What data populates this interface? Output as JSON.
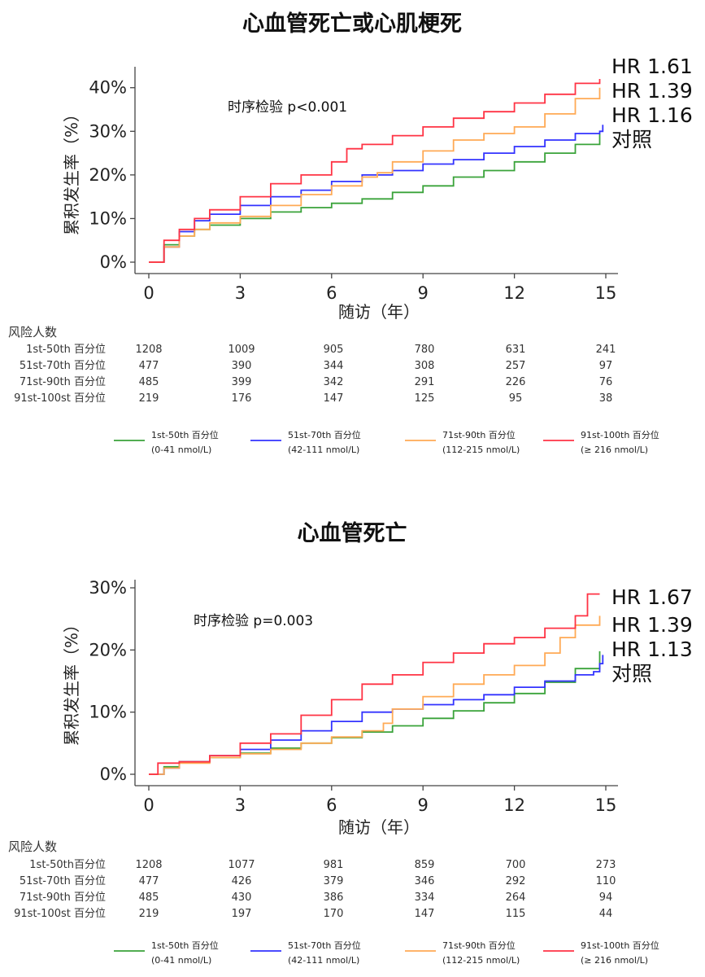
{
  "chart_data": [
    {
      "type": "line",
      "title": "心血管死亡或心肌梗死",
      "ylabel": "累积发生率（%）",
      "xlabel": "随访（年）",
      "xlim": [
        0,
        15
      ],
      "ylim": [
        0,
        42
      ],
      "x_ticks": [
        "0",
        "3",
        "6",
        "9",
        "12",
        "15"
      ],
      "y_ticks": [
        "0%",
        "10%",
        "20%",
        "30%",
        "40%"
      ],
      "test_label": "时序检验 p<0.001",
      "end_labels": [
        "HR 1.61",
        "HR 1.39",
        "HR 1.16",
        "对照"
      ],
      "series": [
        {
          "name": "1st-50th 百分位 (0-41 nmol/L)",
          "color": "#3aa33a",
          "x": [
            0,
            0.5,
            1,
            1.5,
            2,
            3,
            4,
            5,
            6,
            7,
            8,
            9,
            10,
            11,
            12,
            13,
            14,
            14.8
          ],
          "y": [
            0,
            4,
            6,
            7.5,
            8.5,
            10,
            11.5,
            12.5,
            13.5,
            14.5,
            16,
            17.5,
            19.5,
            21,
            23,
            25,
            27,
            29.5
          ]
        },
        {
          "name": "51st-70th 百分位 (42-111 nmol/L)",
          "color": "#3333ff",
          "x": [
            0,
            0.5,
            1,
            1.5,
            2,
            3,
            4,
            5,
            6,
            7,
            8,
            9,
            10,
            11,
            12,
            13,
            14,
            14.8,
            14.9
          ],
          "y": [
            0,
            3.5,
            7,
            9.5,
            11,
            13,
            15,
            16.5,
            18.5,
            20,
            21,
            22.5,
            23.5,
            25,
            26.5,
            28,
            29.5,
            30,
            31.5
          ]
        },
        {
          "name": "71st-90th 百分位 (112-215 nmol/L)",
          "color": "#ffaa55",
          "x": [
            0,
            0.5,
            1,
            1.5,
            2,
            3,
            4,
            5,
            6,
            7,
            7.5,
            8,
            9,
            10,
            11,
            12,
            13,
            14,
            14.8
          ],
          "y": [
            0,
            3.5,
            6,
            7.5,
            9,
            10.5,
            13,
            15.5,
            17.5,
            19.5,
            20.5,
            23,
            25.5,
            28,
            29.5,
            31,
            34,
            37.5,
            40
          ]
        },
        {
          "name": "91st-100th 百分位 (≥ 216 nmol/L)",
          "color": "#ff3344",
          "x": [
            0,
            0.5,
            1,
            1.5,
            2,
            3,
            4,
            5,
            6,
            6.5,
            7,
            8,
            9,
            10,
            11,
            12,
            13,
            14,
            14.8
          ],
          "y": [
            0,
            5,
            7.5,
            10,
            12,
            15,
            18,
            20,
            23,
            26,
            27,
            29,
            31,
            33,
            34.5,
            36.5,
            38.5,
            41,
            42
          ]
        }
      ],
      "risk_table": {
        "title": "风险人数",
        "rows": [
          {
            "label": "1st-50th 百分位",
            "values": [
              "1208",
              "1009",
              "905",
              "780",
              "631",
              "241"
            ]
          },
          {
            "label": "51st-70th 百分位",
            "values": [
              "477",
              "390",
              "344",
              "308",
              "257",
              "97"
            ]
          },
          {
            "label": "71st-90th 百分位",
            "values": [
              "485",
              "399",
              "342",
              "291",
              "226",
              "76"
            ]
          },
          {
            "label": "91st-100st 百分位",
            "values": [
              "219",
              "176",
              "147",
              "125",
              "95",
              "38"
            ]
          }
        ]
      },
      "legend": [
        {
          "line1": "1st-50th 百分位",
          "line2": "(0-41 nmol/L)"
        },
        {
          "line1": "51st-70th 百分位",
          "line2": "(42-111 nmol/L)"
        },
        {
          "line1": "71st-90th 百分位",
          "line2": "(112-215 nmol/L)"
        },
        {
          "line1": "91st-100th 百分位",
          "line2": "(≥ 216 nmol/L)"
        }
      ]
    },
    {
      "type": "line",
      "title": "心血管死亡",
      "ylabel": "累积发生率（%）",
      "xlabel": "随访（年）",
      "xlim": [
        0,
        15
      ],
      "ylim": [
        0,
        30
      ],
      "x_ticks": [
        "0",
        "3",
        "6",
        "9",
        "12",
        "15"
      ],
      "y_ticks": [
        "0%",
        "10%",
        "20%",
        "30%"
      ],
      "test_label": "时序检验 p=0.003",
      "end_labels": [
        "HR 1.67",
        "HR 1.39",
        "HR 1.13",
        "对照"
      ],
      "series": [
        {
          "name": "1st-50th 百分位 (0-41 nmol/L)",
          "color": "#3aa33a",
          "x": [
            0,
            0.5,
            1,
            2,
            3,
            4,
            5,
            6,
            7,
            8,
            9,
            10,
            11,
            12,
            13,
            14,
            14.8
          ],
          "y": [
            0,
            1.2,
            2,
            2.7,
            3.4,
            4.2,
            5,
            5.9,
            6.8,
            7.8,
            9,
            10.2,
            11.5,
            13,
            14.8,
            17,
            19.8
          ]
        },
        {
          "name": "51st-70th 百分位 (42-111 nmol/L)",
          "color": "#3333ff",
          "x": [
            0,
            0.5,
            1,
            2,
            3,
            4,
            5,
            6,
            7,
            8,
            9,
            10,
            11,
            12,
            13,
            14,
            14.6,
            14.8,
            14.9
          ],
          "y": [
            0,
            1,
            2,
            3,
            4,
            5.5,
            7,
            8.5,
            10,
            10.5,
            11.2,
            12,
            12.8,
            14,
            15,
            16,
            16.5,
            17.8,
            19.2
          ]
        },
        {
          "name": "71st-90th 百分位 (112-215 nmol/L)",
          "color": "#ffaa55",
          "x": [
            0,
            0.5,
            1,
            2,
            3,
            4,
            5,
            6,
            7,
            7.7,
            8,
            9,
            10,
            11,
            12,
            13,
            13.5,
            14,
            14.8
          ],
          "y": [
            0,
            1,
            1.8,
            2.7,
            3.3,
            4,
            5,
            6,
            7,
            8.2,
            10.5,
            12.5,
            14.5,
            16,
            17.5,
            19.5,
            22,
            24,
            25.5
          ]
        },
        {
          "name": "91st-100th 百分位 (≥ 216 nmol/L)",
          "color": "#ff3344",
          "x": [
            0,
            0.3,
            1,
            2,
            3,
            4,
            5,
            6,
            7,
            8,
            9,
            10,
            11,
            12,
            13,
            14,
            14.4,
            14.8
          ],
          "y": [
            0,
            1.8,
            2,
            3,
            5,
            6.5,
            9.5,
            12,
            14.5,
            16,
            18,
            19.5,
            21,
            22,
            23.5,
            25.5,
            29,
            29
          ]
        }
      ],
      "risk_table": {
        "title": "风险人数",
        "rows": [
          {
            "label": "1st-50th百分位",
            "values": [
              "1208",
              "1077",
              "981",
              "859",
              "700",
              "273"
            ]
          },
          {
            "label": "51st-70th 百分位",
            "values": [
              "477",
              "426",
              "379",
              "346",
              "292",
              "110"
            ]
          },
          {
            "label": "71st-90th 百分位",
            "values": [
              "485",
              "430",
              "386",
              "334",
              "264",
              "94"
            ]
          },
          {
            "label": "91st-100st 百分位",
            "values": [
              "219",
              "197",
              "170",
              "147",
              "115",
              "44"
            ]
          }
        ]
      },
      "legend": [
        {
          "line1": "1st-50th 百分位",
          "line2": "(0-41 nmol/L)"
        },
        {
          "line1": "51st-70th 百分位",
          "line2": "(42-111 nmol/L)"
        },
        {
          "line1": "71st-90th 百分位",
          "line2": "(112-215 nmol/L)"
        },
        {
          "line1": "91st-100th 百分位",
          "line2": "(≥ 216 nmol/L)"
        }
      ]
    }
  ]
}
